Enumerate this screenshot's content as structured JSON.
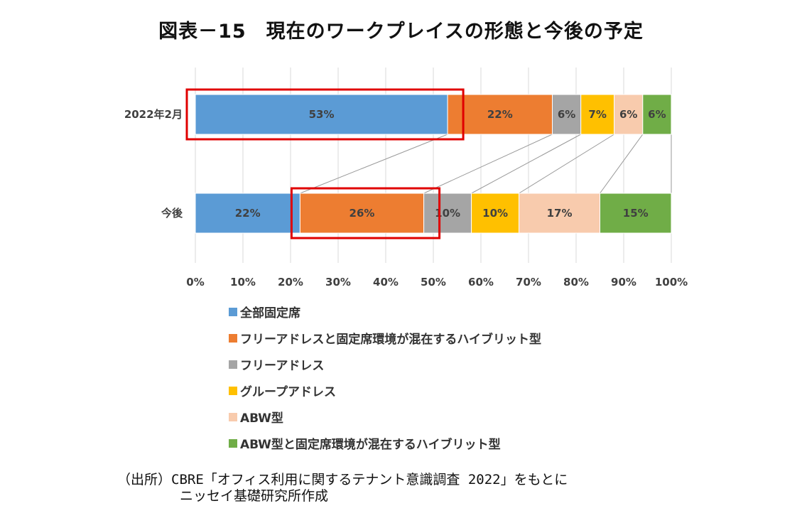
{
  "title": "図表－15　現在のワークプレイスの形態と今後の予定",
  "chart_data": {
    "type": "bar",
    "orientation": "horizontal",
    "stacked": true,
    "categories": [
      "2022年2月",
      "今後"
    ],
    "series": [
      {
        "name": "全部固定席",
        "values": [
          53,
          22
        ],
        "labels": [
          "53%",
          "22%"
        ],
        "color": "#5B9BD5"
      },
      {
        "name": "フリーアドレスと固定席環境が混在するハイブリット型",
        "values": [
          22,
          26
        ],
        "labels": [
          "22%",
          "26%"
        ],
        "color": "#ED7D31"
      },
      {
        "name": "フリーアドレス",
        "values": [
          6,
          10
        ],
        "labels": [
          "6%",
          "10%"
        ],
        "color": "#A5A5A5"
      },
      {
        "name": "グループアドレス",
        "values": [
          7,
          10
        ],
        "labels": [
          "7%",
          "10%"
        ],
        "color": "#FFC000"
      },
      {
        "name": "ABW型",
        "values": [
          6,
          17
        ],
        "labels": [
          "6%",
          "17%"
        ],
        "color": "#F8CBAD"
      },
      {
        "name": "ABW型と固定席環境が混在するハイブリット型",
        "values": [
          6,
          15
        ],
        "labels": [
          "6%",
          "15%"
        ],
        "color": "#70AD47"
      }
    ],
    "xlim": [
      0,
      100
    ],
    "xticks": [
      "0%",
      "10%",
      "20%",
      "30%",
      "40%",
      "50%",
      "60%",
      "70%",
      "80%",
      "90%",
      "100%"
    ],
    "grid": true,
    "legend": "bottom",
    "highlight_boxes": [
      {
        "category": "2022年2月",
        "series": "全部固定席"
      },
      {
        "category": "今後",
        "series": "フリーアドレスと固定席環境が混在するハイブリット型"
      }
    ],
    "highlight_color": "#E00000",
    "connector_color": "#999999"
  },
  "source": {
    "line1": "（出所）CBRE「オフィス利用に関するテナント意識調査 2022」をもとに",
    "line2": "ニッセイ基礎研究所作成"
  }
}
